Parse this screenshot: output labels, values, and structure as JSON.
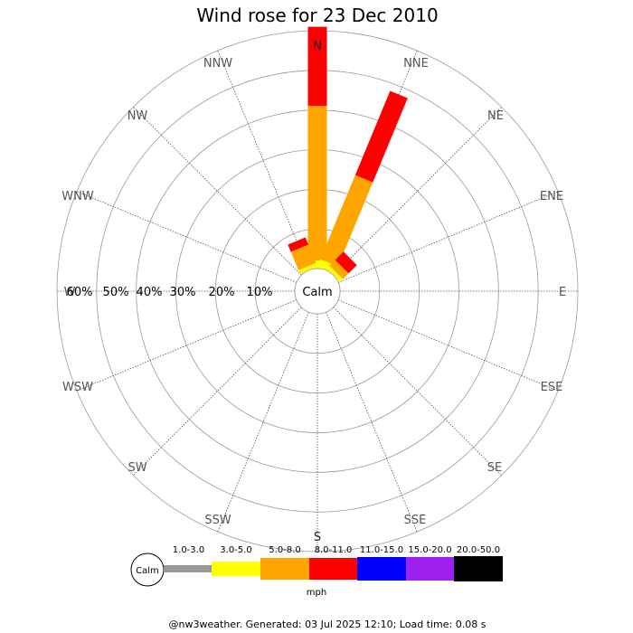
{
  "chart_data": {
    "type": "wind-rose",
    "title": "Wind rose for 23 Dec 2010",
    "directions": [
      "N",
      "NNE",
      "NE",
      "ENE",
      "E",
      "ESE",
      "SE",
      "SSE",
      "S",
      "SSW",
      "SW",
      "WSW",
      "W",
      "WNW",
      "NW",
      "NNW"
    ],
    "radial_ticks": [
      "10%",
      "20%",
      "30%",
      "40%",
      "50%",
      "60%"
    ],
    "radial_max": 60,
    "calm_label": "Calm",
    "speed_unit": "mph",
    "speed_bins": [
      {
        "label": "1.0-3.0",
        "color": "#999999"
      },
      {
        "label": "3.0-5.0",
        "color": "#ffff00"
      },
      {
        "label": "5.0-8.0",
        "color": "#ffa500"
      },
      {
        "label": "8.0-11.0",
        "color": "#ff0000"
      },
      {
        "label": "11.0-15.0",
        "color": "#0000ff"
      },
      {
        "label": "15.0-20.0",
        "color": "#a020f0"
      },
      {
        "label": "20.0-50.0",
        "color": "#000000"
      }
    ],
    "series": [
      {
        "direction": "N",
        "cumulative": [
          0,
          2,
          41,
          61
        ]
      },
      {
        "direction": "NNE",
        "cumulative": [
          0,
          2,
          25,
          48
        ]
      },
      {
        "direction": "NE",
        "cumulative": [
          0,
          1,
          3,
          6
        ]
      },
      {
        "direction": "NNW",
        "cumulative": [
          0,
          1,
          6,
          8
        ]
      }
    ],
    "grid": true
  },
  "footer": "@nw3weather.  Generated: 03 Jul 2025 12:10; Load time: 0.08 s"
}
